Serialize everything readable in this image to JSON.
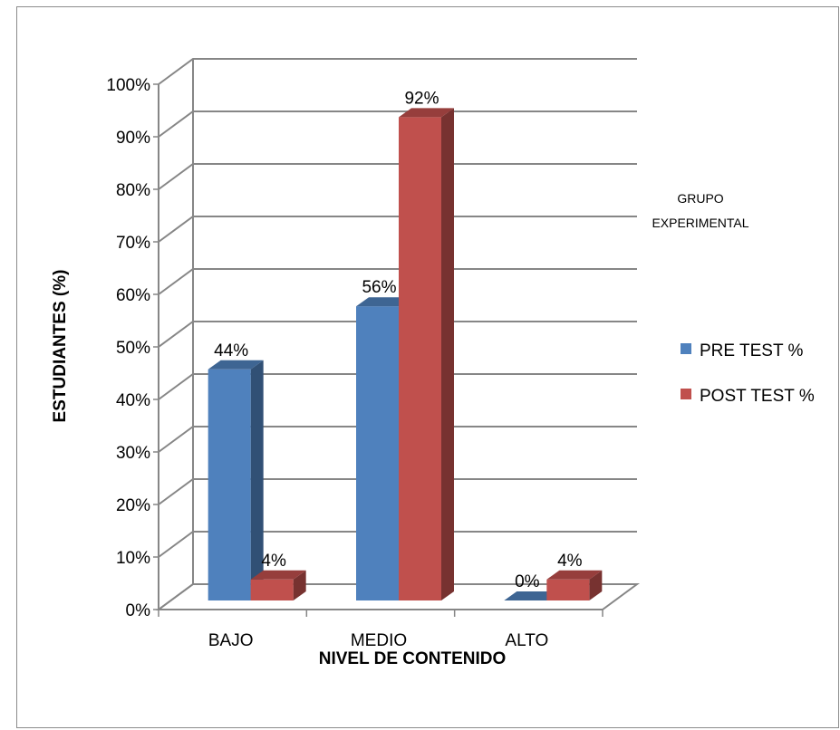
{
  "chart_data": {
    "type": "bar",
    "categories": [
      "BAJO",
      "MEDIO",
      "ALTO"
    ],
    "series": [
      {
        "name": "PRE TEST %",
        "values": [
          44,
          56,
          0
        ],
        "color": "#4f81bd"
      },
      {
        "name": "POST TEST %",
        "values": [
          4,
          92,
          4
        ],
        "color": "#c0504d"
      }
    ],
    "data_labels": [
      [
        "44%",
        "56%",
        "0%"
      ],
      [
        "4%",
        "92%",
        "4%"
      ]
    ],
    "y_ticks": [
      "0%",
      "10%",
      "20%",
      "30%",
      "40%",
      "50%",
      "60%",
      "70%",
      "80%",
      "90%",
      "100%"
    ],
    "ylim": [
      0,
      100
    ],
    "xlabel": "NIVEL DE CONTENIDO",
    "ylabel": "ESTUDIANTES (%)",
    "annotation": [
      "GRUPO",
      "EXPERIMENTAL"
    ],
    "grid": true,
    "legend_position": "right",
    "style": "3d-clustered-column"
  }
}
